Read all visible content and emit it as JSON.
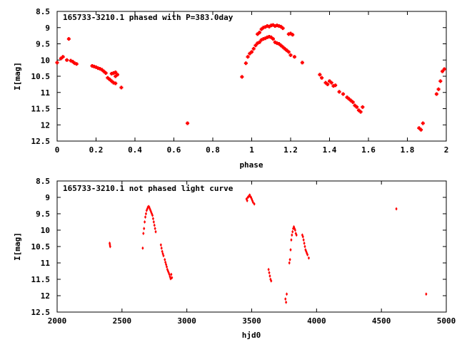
{
  "marker_color": "#ff0000",
  "chart_data": [
    {
      "type": "scatter",
      "title": "165733-3210.1 phased with P=383.0day",
      "xlabel": "phase",
      "ylabel": "I[mag]",
      "xlim": [
        0,
        2
      ],
      "ylim": [
        8.5,
        12.5
      ],
      "y_inverted": true,
      "grid": false,
      "legend": "none",
      "x_ticks": [
        "0",
        "0.2",
        "0.4",
        "0.6",
        "0.8",
        "1",
        "1.2",
        "1.4",
        "1.6",
        "1.8",
        "2"
      ],
      "y_ticks": [
        "8.5",
        "9",
        "9.5",
        "10",
        "10.5",
        "11",
        "11.5",
        "12",
        "12.5"
      ],
      "points": [
        [
          0.0,
          10.08
        ],
        [
          0.02,
          9.95
        ],
        [
          0.03,
          9.9
        ],
        [
          0.05,
          10.0
        ],
        [
          0.06,
          9.35
        ],
        [
          0.07,
          10.02
        ],
        [
          0.08,
          10.05
        ],
        [
          0.09,
          10.1
        ],
        [
          0.1,
          10.12
        ],
        [
          0.18,
          10.18
        ],
        [
          0.19,
          10.2
        ],
        [
          0.2,
          10.22
        ],
        [
          0.21,
          10.25
        ],
        [
          0.22,
          10.27
        ],
        [
          0.23,
          10.3
        ],
        [
          0.24,
          10.35
        ],
        [
          0.25,
          10.4
        ],
        [
          0.26,
          10.55
        ],
        [
          0.27,
          10.6
        ],
        [
          0.28,
          10.65
        ],
        [
          0.29,
          10.7
        ],
        [
          0.3,
          10.72
        ],
        [
          0.28,
          10.42
        ],
        [
          0.29,
          10.4
        ],
        [
          0.3,
          10.38
        ],
        [
          0.31,
          10.45
        ],
        [
          0.3,
          10.5
        ],
        [
          0.33,
          10.85
        ],
        [
          0.67,
          11.95
        ],
        [
          0.95,
          10.52
        ],
        [
          0.97,
          10.1
        ],
        [
          0.98,
          9.9
        ],
        [
          0.99,
          9.8
        ],
        [
          1.0,
          9.75
        ],
        [
          1.01,
          9.65
        ],
        [
          1.02,
          9.55
        ],
        [
          1.03,
          9.48
        ],
        [
          1.04,
          9.45
        ],
        [
          1.05,
          9.38
        ],
        [
          1.06,
          9.35
        ],
        [
          1.07,
          9.33
        ],
        [
          1.08,
          9.3
        ],
        [
          1.09,
          9.28
        ],
        [
          1.1,
          9.3
        ],
        [
          1.11,
          9.35
        ],
        [
          1.12,
          9.45
        ],
        [
          1.13,
          9.48
        ],
        [
          1.14,
          9.5
        ],
        [
          1.15,
          9.55
        ],
        [
          1.16,
          9.6
        ],
        [
          1.17,
          9.65
        ],
        [
          1.18,
          9.7
        ],
        [
          1.19,
          9.75
        ],
        [
          1.2,
          9.85
        ],
        [
          1.22,
          9.9
        ],
        [
          1.03,
          9.2
        ],
        [
          1.04,
          9.15
        ],
        [
          1.05,
          9.05
        ],
        [
          1.06,
          9.0
        ],
        [
          1.07,
          8.98
        ],
        [
          1.08,
          8.95
        ],
        [
          1.09,
          8.97
        ],
        [
          1.1,
          8.93
        ],
        [
          1.11,
          8.92
        ],
        [
          1.12,
          8.95
        ],
        [
          1.13,
          8.93
        ],
        [
          1.14,
          8.95
        ],
        [
          1.15,
          8.97
        ],
        [
          1.16,
          9.02
        ],
        [
          1.19,
          9.2
        ],
        [
          1.2,
          9.18
        ],
        [
          1.21,
          9.22
        ],
        [
          1.26,
          10.08
        ],
        [
          1.35,
          10.45
        ],
        [
          1.36,
          10.55
        ],
        [
          1.38,
          10.7
        ],
        [
          1.39,
          10.75
        ],
        [
          1.4,
          10.65
        ],
        [
          1.41,
          10.7
        ],
        [
          1.42,
          10.8
        ],
        [
          1.43,
          10.78
        ],
        [
          1.45,
          10.98
        ],
        [
          1.47,
          11.05
        ],
        [
          1.49,
          11.15
        ],
        [
          1.5,
          11.2
        ],
        [
          1.51,
          11.25
        ],
        [
          1.52,
          11.3
        ],
        [
          1.53,
          11.4
        ],
        [
          1.54,
          11.45
        ],
        [
          1.55,
          11.55
        ],
        [
          1.56,
          11.6
        ],
        [
          1.57,
          11.45
        ],
        [
          1.86,
          12.1
        ],
        [
          1.87,
          12.15
        ],
        [
          1.88,
          11.95
        ],
        [
          1.95,
          11.05
        ],
        [
          1.96,
          10.9
        ],
        [
          1.97,
          10.65
        ],
        [
          1.98,
          10.35
        ],
        [
          1.99,
          10.28
        ]
      ]
    },
    {
      "type": "scatter",
      "title": "165733-3210.1 not phased light curve",
      "xlabel": "hjd0",
      "ylabel": "I[mag]",
      "xlim": [
        2000,
        5000
      ],
      "ylim": [
        8.5,
        12.5
      ],
      "y_inverted": true,
      "grid": false,
      "legend": "none",
      "x_ticks": [
        "2000",
        "2500",
        "3000",
        "3500",
        "4000",
        "4500",
        "5000"
      ],
      "y_ticks": [
        "8.5",
        "9",
        "9.5",
        "10",
        "10.5",
        "11",
        "11.5",
        "12",
        "12.5"
      ],
      "points": [
        [
          2405,
          10.4
        ],
        [
          2407,
          10.45
        ],
        [
          2409,
          10.5
        ],
        [
          2660,
          10.55
        ],
        [
          2665,
          10.1
        ],
        [
          2670,
          9.95
        ],
        [
          2675,
          9.75
        ],
        [
          2680,
          9.6
        ],
        [
          2685,
          9.5
        ],
        [
          2690,
          9.4
        ],
        [
          2695,
          9.35
        ],
        [
          2700,
          9.3
        ],
        [
          2705,
          9.28
        ],
        [
          2710,
          9.3
        ],
        [
          2715,
          9.35
        ],
        [
          2720,
          9.4
        ],
        [
          2725,
          9.45
        ],
        [
          2730,
          9.5
        ],
        [
          2735,
          9.55
        ],
        [
          2740,
          9.65
        ],
        [
          2745,
          9.75
        ],
        [
          2750,
          9.85
        ],
        [
          2755,
          9.95
        ],
        [
          2760,
          10.05
        ],
        [
          2800,
          10.45
        ],
        [
          2805,
          10.55
        ],
        [
          2810,
          10.65
        ],
        [
          2815,
          10.72
        ],
        [
          2820,
          10.78
        ],
        [
          2830,
          10.9
        ],
        [
          2835,
          10.98
        ],
        [
          2840,
          11.05
        ],
        [
          2845,
          11.12
        ],
        [
          2850,
          11.2
        ],
        [
          2855,
          11.25
        ],
        [
          2860,
          11.3
        ],
        [
          2865,
          11.35
        ],
        [
          2870,
          11.42
        ],
        [
          2875,
          11.48
        ],
        [
          2880,
          11.35
        ],
        [
          2885,
          11.45
        ],
        [
          3460,
          9.05
        ],
        [
          3465,
          9.1
        ],
        [
          3470,
          9.0
        ],
        [
          3475,
          8.98
        ],
        [
          3480,
          8.95
        ],
        [
          3485,
          8.93
        ],
        [
          3490,
          8.98
        ],
        [
          3495,
          9.0
        ],
        [
          3500,
          9.05
        ],
        [
          3505,
          9.1
        ],
        [
          3510,
          9.15
        ],
        [
          3520,
          9.2
        ],
        [
          3630,
          11.2
        ],
        [
          3635,
          11.3
        ],
        [
          3640,
          11.4
        ],
        [
          3645,
          11.5
        ],
        [
          3650,
          11.55
        ],
        [
          3760,
          12.1
        ],
        [
          3765,
          12.2
        ],
        [
          3770,
          11.95
        ],
        [
          3790,
          11.0
        ],
        [
          3795,
          10.9
        ],
        [
          3800,
          10.6
        ],
        [
          3805,
          10.3
        ],
        [
          3810,
          10.15
        ],
        [
          3815,
          10.05
        ],
        [
          3820,
          9.95
        ],
        [
          3825,
          9.9
        ],
        [
          3830,
          9.95
        ],
        [
          3835,
          10.0
        ],
        [
          3840,
          10.1
        ],
        [
          3845,
          10.15
        ],
        [
          3890,
          10.15
        ],
        [
          3895,
          10.2
        ],
        [
          3900,
          10.3
        ],
        [
          3905,
          10.4
        ],
        [
          3910,
          10.5
        ],
        [
          3915,
          10.6
        ],
        [
          3920,
          10.65
        ],
        [
          3925,
          10.7
        ],
        [
          3930,
          10.75
        ],
        [
          3940,
          10.85
        ],
        [
          4615,
          9.35
        ],
        [
          4845,
          11.95
        ]
      ]
    }
  ]
}
